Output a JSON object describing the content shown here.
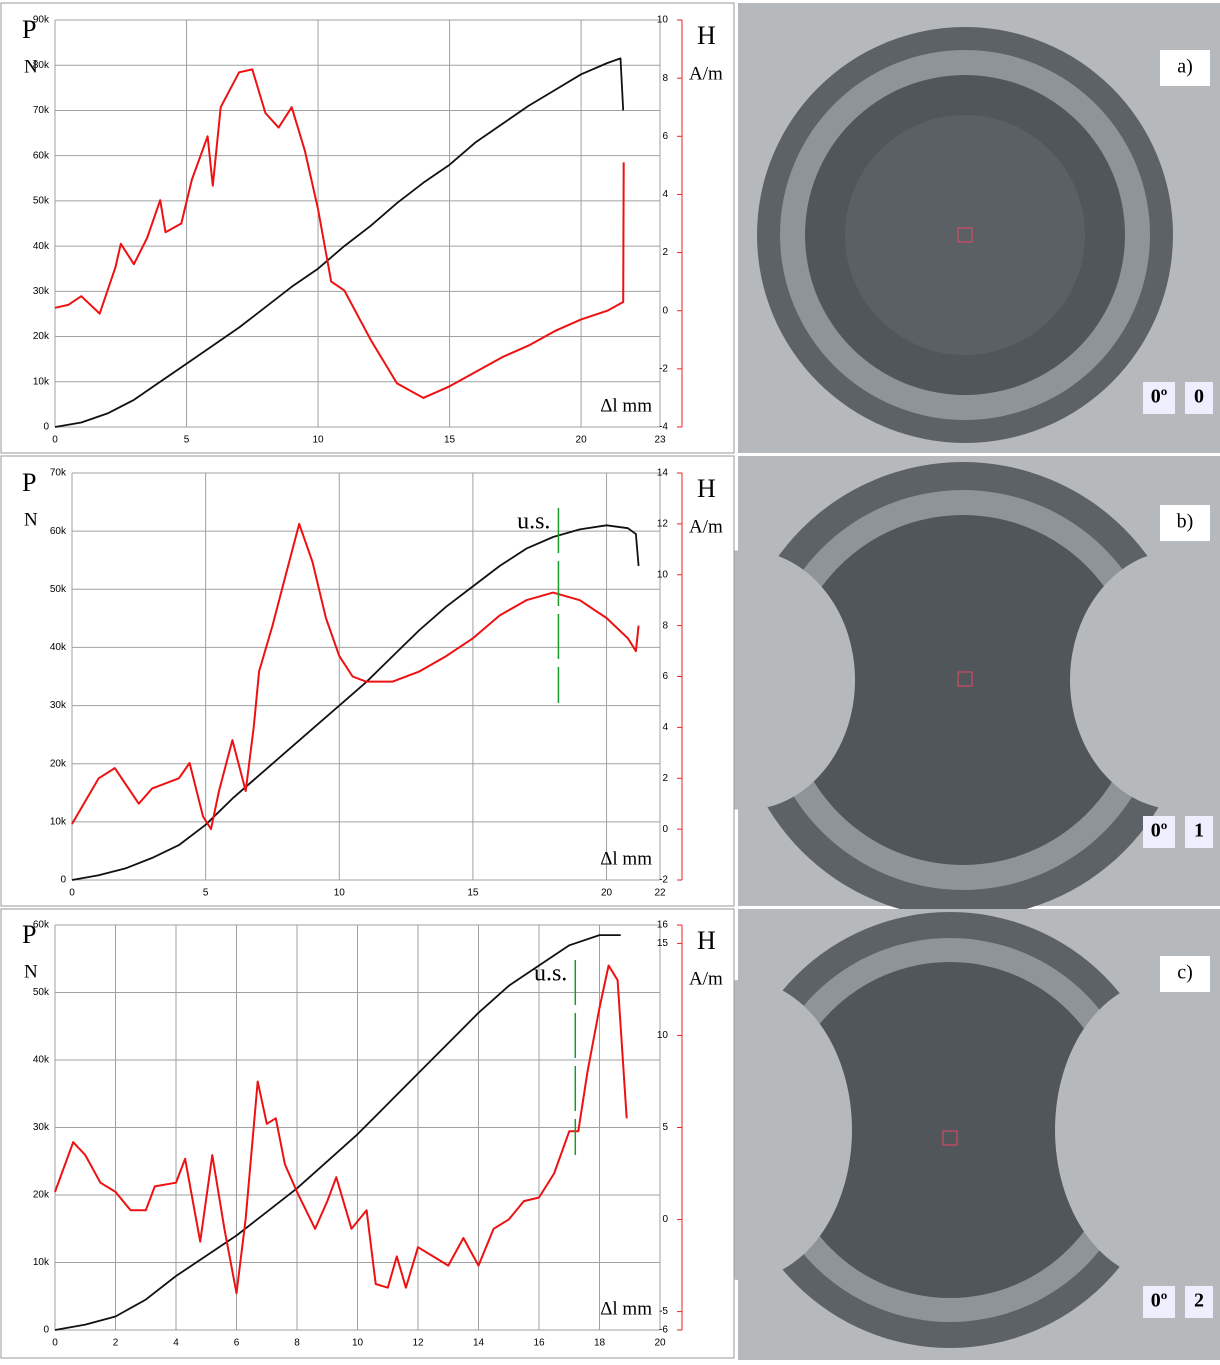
{
  "chart_data": [
    {
      "type": "line",
      "y_label": "P",
      "y_unit": "N",
      "y2_label": "H",
      "y2_unit": "A/m",
      "x_label": "Δl mm",
      "grid": true,
      "xlim": [
        0,
        23
      ],
      "xticks": [
        0,
        5,
        10,
        15,
        20,
        23
      ],
      "ylim": [
        0,
        90000
      ],
      "yticks": [
        0,
        {
          "value": 10000,
          "label": "10k"
        },
        {
          "value": 20000,
          "label": "20k"
        },
        {
          "value": 30000,
          "label": "30k"
        },
        {
          "value": 40000,
          "label": "40k"
        },
        {
          "value": 50000,
          "label": "50k"
        },
        {
          "value": 60000,
          "label": "60k"
        },
        {
          "value": 70000,
          "label": "70k"
        },
        {
          "value": 80000,
          "label": "80k"
        },
        {
          "value": 90000,
          "label": "90k"
        }
      ],
      "y2lim": [
        -4,
        10
      ],
      "y2ticks": [
        -4,
        -2,
        0,
        2,
        4,
        6,
        8,
        10
      ],
      "series": [
        {
          "color": "#111111",
          "x": [
            0,
            1,
            2,
            3,
            4,
            5,
            6,
            7,
            8,
            9,
            10,
            11,
            12,
            13,
            14,
            15,
            16,
            17,
            18,
            19,
            20,
            21,
            21.5,
            21.6
          ],
          "values": [
            0,
            1000,
            3000,
            6000,
            10000,
            14000,
            18000,
            22000,
            26500,
            31000,
            35000,
            40000,
            44500,
            49500,
            54000,
            58000,
            63000,
            67000,
            71000,
            74500,
            78000,
            80500,
            81500,
            70000
          ]
        },
        {
          "color": "#ee1111",
          "axis": "y2",
          "x": [
            0,
            0.5,
            1,
            1.7,
            2.3,
            2.5,
            3,
            3.5,
            4,
            4.2,
            4.8,
            5.2,
            5.8,
            6,
            6.3,
            7,
            7.5,
            8,
            8.5,
            9,
            9.5,
            10,
            10.5,
            11,
            12,
            13,
            14,
            15,
            16,
            17,
            18,
            19,
            20,
            21,
            21.6,
            21.62
          ],
          "values": [
            0.1,
            0.2,
            0.5,
            -0.1,
            1.5,
            2.3,
            1.6,
            2.5,
            3.8,
            2.7,
            3,
            4.5,
            6,
            4.3,
            7,
            8.2,
            8.3,
            6.8,
            6.3,
            7,
            5.5,
            3.5,
            1,
            0.7,
            -1,
            -2.5,
            -3,
            -2.6,
            -2.1,
            -1.6,
            -1.2,
            -0.7,
            -0.3,
            0,
            0.3,
            5.1
          ]
        }
      ]
    },
    {
      "type": "line",
      "y_label": "P",
      "y_unit": "N",
      "y2_label": "H",
      "y2_unit": "A/m",
      "x_label": "Δl mm",
      "grid": true,
      "annotations": [
        {
          "text": "u.s.",
          "x": 18.2
        }
      ],
      "xlim": [
        0,
        22
      ],
      "xticks": [
        0,
        5,
        10,
        15,
        20,
        22
      ],
      "ylim": [
        0,
        70000
      ],
      "yticks": [
        0,
        {
          "value": 10000,
          "label": "10k"
        },
        {
          "value": 20000,
          "label": "20k"
        },
        {
          "value": 30000,
          "label": "30k"
        },
        {
          "value": 40000,
          "label": "40k"
        },
        {
          "value": 50000,
          "label": "50k"
        },
        {
          "value": 60000,
          "label": "60k"
        },
        {
          "value": 70000,
          "label": "70k"
        }
      ],
      "y2lim": [
        -2,
        14
      ],
      "y2ticks": [
        -2,
        0,
        2,
        4,
        6,
        8,
        10,
        12,
        14
      ],
      "series": [
        {
          "color": "#111111",
          "x": [
            0,
            1,
            2,
            3,
            4,
            5,
            6,
            7,
            8,
            9,
            10,
            11,
            12,
            13,
            14,
            15,
            16,
            17,
            18,
            19,
            20,
            20.8,
            21.1,
            21.2
          ],
          "values": [
            0,
            800,
            2000,
            3800,
            6000,
            9500,
            14000,
            18000,
            22000,
            26000,
            30000,
            34000,
            38500,
            43000,
            47000,
            50500,
            54000,
            57000,
            59000,
            60300,
            61000,
            60500,
            59500,
            54000
          ]
        },
        {
          "color": "#ee1111",
          "axis": "y2",
          "x": [
            0,
            1,
            1.6,
            2.5,
            3,
            4,
            4.4,
            4.9,
            5.2,
            5.5,
            6,
            6.5,
            6.8,
            7,
            7.5,
            8,
            8.5,
            9,
            9.5,
            10,
            10.5,
            11,
            12,
            13,
            14,
            15,
            16,
            17,
            18,
            19,
            20,
            20.8,
            21.1,
            21.2
          ],
          "values": [
            0.2,
            2,
            2.4,
            1,
            1.6,
            2,
            2.6,
            0.5,
            0,
            1.5,
            3.5,
            1.5,
            4,
            6.2,
            8,
            10,
            12,
            10.5,
            8.3,
            6.8,
            6,
            5.8,
            5.8,
            6.2,
            6.8,
            7.5,
            8.4,
            9,
            9.3,
            9,
            8.3,
            7.5,
            7,
            8
          ]
        }
      ]
    },
    {
      "type": "line",
      "y_label": "P",
      "y_unit": "N",
      "y2_label": "H",
      "y2_unit": "A/m",
      "x_label": "Δl mm",
      "grid": true,
      "annotations": [
        {
          "text": "u.s.",
          "x": 17.2
        }
      ],
      "xlim": [
        0,
        20
      ],
      "xticks": [
        0,
        2,
        4,
        6,
        8,
        10,
        12,
        14,
        16,
        18,
        20
      ],
      "ylim": [
        0,
        60000
      ],
      "yticks": [
        0,
        {
          "value": 10000,
          "label": "10k"
        },
        {
          "value": 20000,
          "label": "20k"
        },
        {
          "value": 30000,
          "label": "30k"
        },
        {
          "value": 40000,
          "label": "40k"
        },
        {
          "value": 50000,
          "label": "50k"
        },
        {
          "value": 60000,
          "label": "60k"
        }
      ],
      "y2lim": [
        -6,
        16
      ],
      "y2ticks": [
        -6,
        -5,
        0,
        5,
        10,
        15,
        16
      ],
      "series": [
        {
          "color": "#111111",
          "x": [
            0,
            1,
            2,
            3,
            4,
            5,
            6,
            7,
            8,
            9,
            10,
            11,
            12,
            13,
            14,
            15,
            16,
            17,
            18,
            18.7
          ],
          "values": [
            0,
            800,
            2000,
            4500,
            8000,
            11000,
            14000,
            17500,
            21000,
            25000,
            29000,
            33500,
            38000,
            42500,
            47000,
            51000,
            54000,
            57000,
            58500,
            58500
          ]
        },
        {
          "color": "#ee1111",
          "axis": "y2",
          "x": [
            0,
            0.6,
            1,
            1.5,
            2,
            2.5,
            3,
            3.3,
            4,
            4.3,
            4.8,
            5.2,
            5.6,
            6,
            6.3,
            6.7,
            7,
            7.3,
            7.6,
            8,
            8.6,
            9,
            9.3,
            9.8,
            10.3,
            10.6,
            11,
            11.3,
            11.6,
            12,
            12.5,
            13,
            13.5,
            14,
            14.5,
            15,
            15.5,
            16,
            16.5,
            17,
            17.3,
            17.6,
            18,
            18.3,
            18.6,
            18.9
          ],
          "values": [
            1.5,
            4.2,
            3.5,
            2,
            1.5,
            0.5,
            0.5,
            1.8,
            2,
            3.3,
            -1.2,
            3.5,
            -0.5,
            -4,
            0,
            7.5,
            5.2,
            5.5,
            3,
            1.5,
            -0.5,
            1,
            2.3,
            -0.5,
            0.5,
            -3.5,
            -3.7,
            -2,
            -3.7,
            -1.5,
            -2,
            -2.5,
            -1,
            -2.5,
            -0.5,
            0,
            1,
            1.2,
            2.5,
            4.8,
            4.8,
            8,
            11.5,
            13.8,
            13,
            5.5
          ]
        }
      ]
    }
  ],
  "photos": [
    {
      "panel": "a)",
      "angle": "0º",
      "index": "0"
    },
    {
      "panel": "b)",
      "angle": "0º",
      "index": "1"
    },
    {
      "panel": "c)",
      "angle": "0º",
      "index": "2"
    }
  ]
}
